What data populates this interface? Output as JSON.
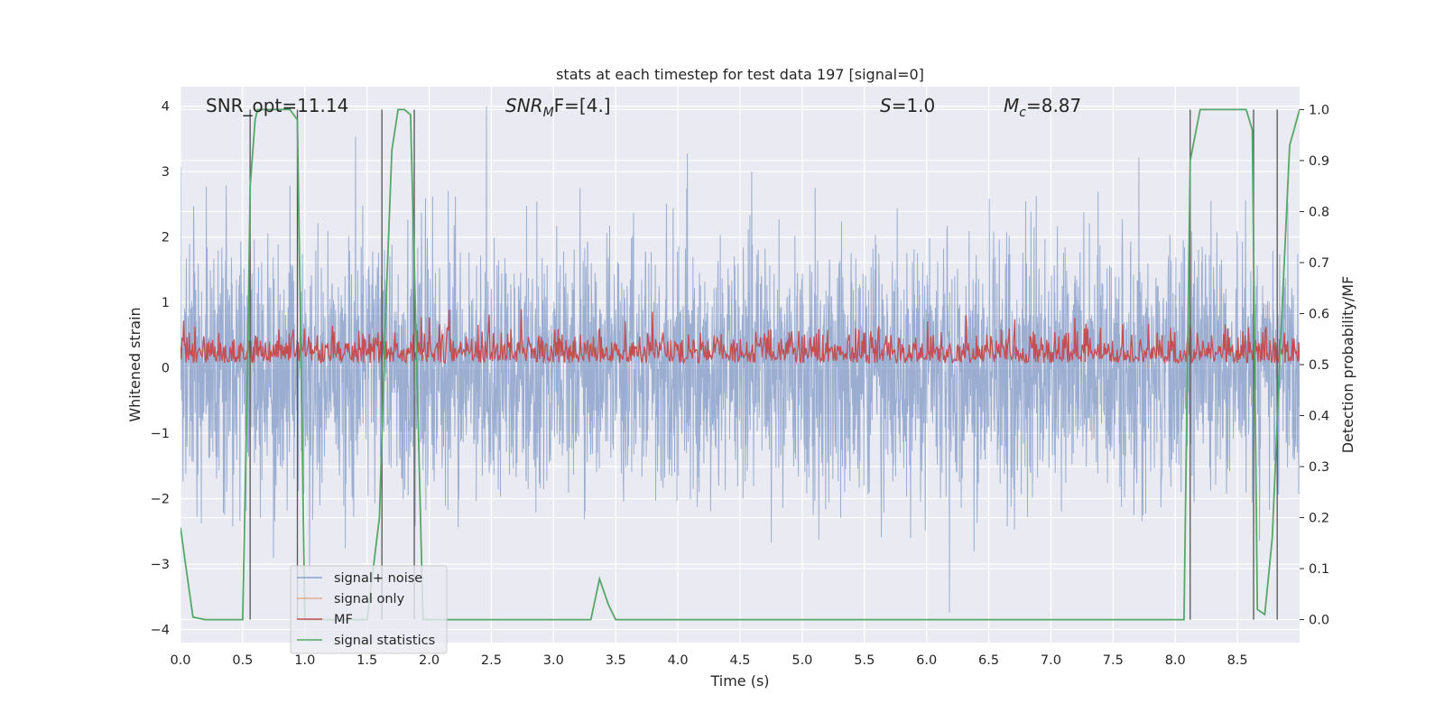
{
  "chart_data": {
    "type": "line",
    "title": "stats at each timestep for test data 197 [signal=0]",
    "xlabel": "Time (s)",
    "ylabel": "Whitened strain",
    "y2label": "Detection probability/MF",
    "xlim": [
      0.0,
      9.0
    ],
    "ylim": [
      -4.2,
      4.3
    ],
    "y2lim": [
      -0.045,
      1.045
    ],
    "x_ticks": [
      "0.0",
      "0.5",
      "1.0",
      "1.5",
      "2.0",
      "2.5",
      "3.0",
      "3.5",
      "4.0",
      "4.5",
      "5.0",
      "5.5",
      "6.0",
      "6.5",
      "7.0",
      "7.5",
      "8.0",
      "8.5"
    ],
    "x_tick_values": [
      0.0,
      0.5,
      1.0,
      1.5,
      2.0,
      2.5,
      3.0,
      3.5,
      4.0,
      4.5,
      5.0,
      5.5,
      6.0,
      6.5,
      7.0,
      7.5,
      8.0,
      8.5
    ],
    "y_ticks": [
      "4",
      "3",
      "2",
      "1",
      "0",
      "−1",
      "−2",
      "−3",
      "−4"
    ],
    "y_tick_values": [
      4,
      3,
      2,
      1,
      0,
      -1,
      -2,
      -3,
      -4
    ],
    "y2_ticks": [
      "1.0",
      "0.9",
      "0.8",
      "0.7",
      "0.6",
      "0.5",
      "0.4",
      "0.3",
      "0.2",
      "0.1",
      "0.0"
    ],
    "y2_tick_values": [
      1.0,
      0.9,
      0.8,
      0.7,
      0.6,
      0.5,
      0.4,
      0.3,
      0.2,
      0.1,
      0.0
    ],
    "grid": true,
    "legend_position": "lower-left",
    "annotations": {
      "snr_opt": "SNR_opt=11.14",
      "snr_mf_prefix": "SNR",
      "snr_mf_sub": "M",
      "snr_mf_suffix": "F=[4.]",
      "s_prefix": "S",
      "s_suffix": "=1.0",
      "mc_prefix": "M",
      "mc_sub": "c",
      "mc_suffix": "=8.87"
    },
    "series": [
      {
        "name": "signal+ noise",
        "color": "#4c72b0",
        "axis": "left",
        "description": "dense noise trace",
        "typical_range": [
          -2.3,
          2.3
        ],
        "extremes": [
          -3.8,
          4.0
        ]
      },
      {
        "name": "signal only",
        "color": "#dd8452",
        "axis": "left",
        "values": []
      },
      {
        "name": "MF",
        "color": "#c44e52",
        "axis": "right",
        "typical_range": [
          0.5,
          0.6
        ],
        "extremes": [
          0.49,
          0.64
        ]
      },
      {
        "name": "signal statistics",
        "color": "#55a868",
        "axis": "right",
        "x": [
          0.0,
          0.1,
          0.2,
          0.3,
          0.4,
          0.5,
          0.54,
          0.56,
          0.6,
          0.62,
          0.7,
          0.8,
          0.88,
          0.94,
          0.97,
          1.0,
          1.05,
          1.1,
          1.2,
          1.3,
          1.4,
          1.5,
          1.6,
          1.65,
          1.7,
          1.75,
          1.8,
          1.85,
          1.9,
          1.95,
          2.0,
          2.5,
          3.0,
          3.2,
          3.3,
          3.37,
          3.44,
          3.5,
          4.0,
          5.0,
          6.0,
          7.0,
          8.0,
          8.07,
          8.12,
          8.2,
          8.3,
          8.5,
          8.57,
          8.62,
          8.66,
          8.72,
          8.78,
          8.85,
          8.92,
          9.0
        ],
        "values": [
          0.18,
          0.005,
          0.0,
          0.0,
          0.0,
          0.0,
          0.5,
          0.85,
          0.98,
          1.0,
          1.0,
          1.0,
          1.0,
          0.98,
          0.5,
          0.0,
          0.0,
          0.0,
          0.0,
          0.0,
          0.0,
          0.0,
          0.2,
          0.6,
          0.92,
          1.0,
          1.0,
          0.99,
          0.5,
          0.0,
          0.0,
          0.0,
          0.0,
          0.0,
          0.0,
          0.08,
          0.03,
          0.0,
          0.0,
          0.0,
          0.0,
          0.0,
          0.0,
          0.0,
          0.9,
          1.0,
          1.0,
          1.0,
          1.0,
          0.96,
          0.02,
          0.01,
          0.16,
          0.56,
          0.93,
          1.0
        ]
      }
    ],
    "vertical_markers": [
      0.56,
      0.94,
      1.62,
      1.88,
      8.12,
      8.63,
      8.82
    ]
  }
}
